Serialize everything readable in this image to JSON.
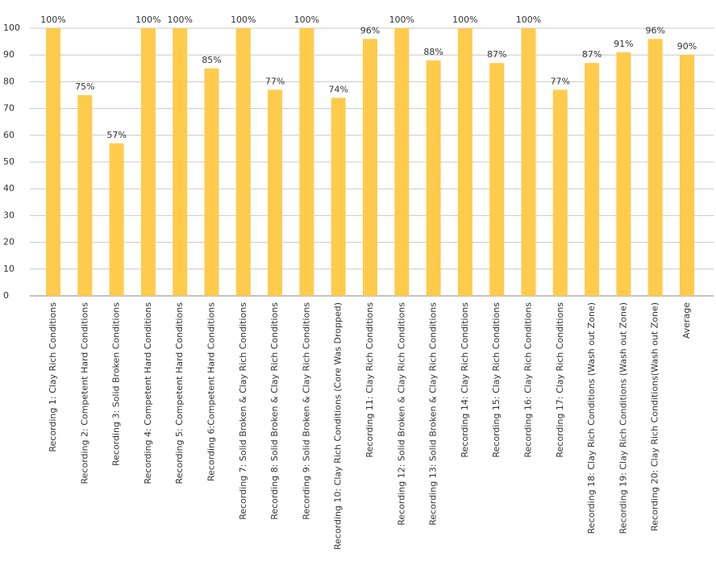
{
  "chart_data": {
    "type": "bar",
    "categories": [
      "Recording  1: Clay Rich Conditions",
      "Recording 2: Competent Hard Conditions",
      "Recording 3: Solid Broken Conditions",
      "Recording 4: Competent Hard Conditions",
      "Recording 5: Competent Hard Conditions",
      "Recording 6:Competent Hard Conditions",
      "Recording 7: Solid Broken & Clay Rich Conditions",
      "Recording 8: Solid Broken & Clay Rich Conditions",
      "Recording 9: Solid Broken & Clay Rich Conditions",
      "Recording 10: Clay Rich Conditions (Core Was Dropped)",
      "Recording  11: Clay Rich Conditions",
      "Recording  12: Solid Broken & Clay Rich Conditions",
      "Recording  13: Solid Broken & Clay Rich Conditions",
      "Recording  14: Clay Rich Conditions",
      "Recording  15: Clay Rich Conditions",
      "Recording  16: Clay Rich Conditions",
      "Recording  17: Clay Rich Conditions",
      "Recording  18: Clay Rich Conditions (Wash out Zone)",
      "Recording  19: Clay Rich Conditions (Wash out Zone)",
      "Recording 20: Clay Rich Conditions(Wash out Zone)",
      "Average"
    ],
    "values": [
      100,
      75,
      57,
      100,
      100,
      85,
      100,
      77,
      100,
      74,
      96,
      100,
      88,
      100,
      87,
      100,
      77,
      87,
      91,
      96,
      90
    ],
    "value_labels": [
      "100%",
      "75%",
      "57%",
      "100%",
      "100%",
      "85%",
      "100%",
      "77%",
      "100%",
      "74%",
      "96%",
      "100%",
      "88%",
      "100%",
      "87%",
      "100%",
      "77%",
      "87%",
      "91%",
      "96%",
      "90%"
    ],
    "color": "#fecb4d",
    "ylim": [
      0,
      100
    ],
    "yticks": [
      0,
      10,
      20,
      30,
      40,
      50,
      60,
      70,
      80,
      90,
      100
    ],
    "grid": true
  }
}
